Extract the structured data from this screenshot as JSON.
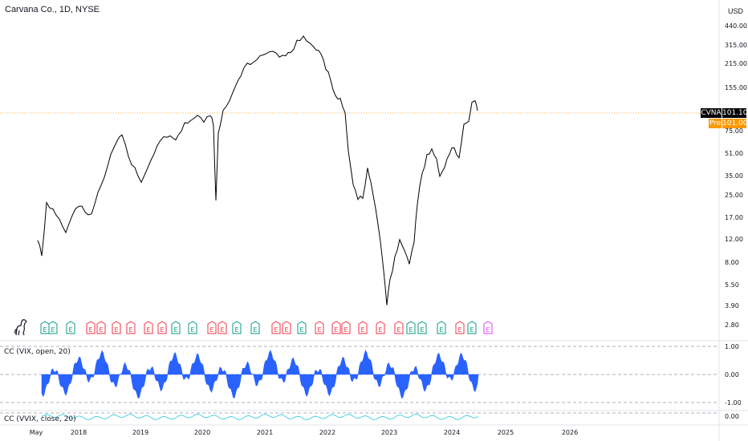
{
  "chart_title": "Carvana Co., 1D, NYSE",
  "currency": "USD",
  "symbol": "CVNA",
  "last_price": "101.10",
  "pre_label": "Pre",
  "pre_price": "101.00",
  "price_axis_ticks": [
    "440.00",
    "315.00",
    "215.00",
    "155.00",
    "75.00",
    "51.00",
    "35.00",
    "25.00",
    "17.00",
    "12.00",
    "8.00",
    "5.50",
    "3.90",
    "2.80"
  ],
  "time_axis_ticks": [
    "May",
    "2018",
    "2019",
    "2020",
    "2021",
    "2022",
    "2023",
    "2024",
    "2025",
    "2026"
  ],
  "earnings_glyph": "E",
  "indicator_1": {
    "label": "CC (VIX, open, 20)",
    "ticks": [
      "1.00",
      "0.00",
      "-1.00"
    ]
  },
  "indicator_2": {
    "label": "CC (VVIX, close, 20)",
    "ticks": [
      "0.00"
    ]
  },
  "colors": {
    "price_line": "#000000",
    "earnings_green": "#089981",
    "earnings_red": "#f23645",
    "earnings_pink": "#e040fb",
    "indicator_fill": "#2962ff",
    "vvix_line": "#26c6da",
    "last_price_bg": "#000000",
    "pre_bg": "#ff9800",
    "grid_dash": "#9598a1"
  }
}
